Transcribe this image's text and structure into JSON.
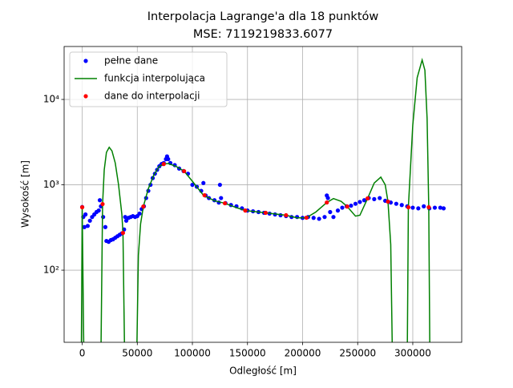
{
  "chart_data": {
    "type": "line",
    "title": "Interpolacja Lagrange'a dla 18 punktów",
    "subtitle": "MSE: 7119219833.6077",
    "x_label": "Odległość [m]",
    "y_label": "Wysokość [m]",
    "log_y": true,
    "grid": true,
    "legend": "upper left",
    "xlim": [
      -16400,
      344400
    ],
    "ylim": [
      14.3,
      41700
    ],
    "xticks": [
      0,
      50000,
      100000,
      150000,
      200000,
      250000,
      300000
    ],
    "yticks": [
      {
        "value": 100,
        "label": "10²"
      },
      {
        "value": 1000,
        "label": "10³"
      },
      {
        "value": 10000,
        "label": "10⁴"
      }
    ],
    "series": [
      {
        "name": "pełne dane",
        "color": "#0000ff",
        "style": "markers",
        "x": [
          0,
          1000,
          2000,
          3000,
          5000,
          7000,
          9000,
          11000,
          13000,
          15000,
          16000,
          17000,
          19000,
          21000,
          22000,
          24000,
          26000,
          28000,
          30000,
          32000,
          34000,
          36000,
          38000,
          39000,
          40000,
          42000,
          44000,
          46000,
          48000,
          50000,
          52000,
          54000,
          56000,
          58000,
          60000,
          62000,
          64000,
          66000,
          68000,
          70000,
          72000,
          74000,
          76000,
          77000,
          78000,
          80000,
          84000,
          88000,
          92000,
          96000,
          100000,
          104000,
          108000,
          110000,
          112000,
          115000,
          120000,
          124000,
          125000,
          126000,
          130000,
          135000,
          140000,
          145000,
          150000,
          155000,
          160000,
          165000,
          170000,
          175000,
          180000,
          185000,
          190000,
          195000,
          200000,
          205000,
          210000,
          215000,
          220000,
          222000,
          223000,
          225000,
          228000,
          232000,
          236000,
          240000,
          244000,
          248000,
          252000,
          256000,
          260000,
          265000,
          270000,
          275000,
          280000,
          285000,
          290000,
          295000,
          300000,
          305000,
          310000,
          315000,
          320000,
          325000,
          328000
        ],
        "values": [
          550,
          420,
          320,
          450,
          330,
          380,
          420,
          450,
          480,
          500,
          660,
          560,
          420,
          320,
          220,
          215,
          225,
          230,
          240,
          250,
          260,
          270,
          300,
          420,
          380,
          410,
          420,
          430,
          420,
          430,
          460,
          520,
          560,
          700,
          850,
          1000,
          1200,
          1350,
          1500,
          1650,
          1750,
          1800,
          2000,
          2150,
          2000,
          1800,
          1700,
          1550,
          1450,
          1350,
          1000,
          950,
          850,
          1050,
          750,
          700,
          660,
          620,
          1000,
          700,
          610,
          580,
          560,
          530,
          500,
          490,
          480,
          470,
          460,
          450,
          440,
          430,
          420,
          420,
          410,
          420,
          410,
          400,
          420,
          750,
          700,
          480,
          420,
          500,
          540,
          560,
          570,
          600,
          630,
          660,
          700,
          680,
          700,
          650,
          620,
          600,
          580,
          560,
          540,
          530,
          560,
          530,
          540,
          540,
          530
        ]
      },
      {
        "name": "funkcja interpolująca",
        "color": "#008000",
        "style": "line",
        "x": [
          -800,
          0,
          1500,
          null,
          17000,
          18500,
          20000,
          22000,
          24500,
          27000,
          30000,
          33000,
          36000,
          37000,
          38500,
          null,
          49500,
          51000,
          53000,
          55500,
          60000,
          65000,
          70000,
          74000,
          78000,
          85000,
          92500,
          100000,
          110000,
          120000,
          129500,
          140000,
          148000,
          166500,
          185000,
          195000,
          203500,
          212000,
          222000,
          228000,
          235000,
          240500,
          248000,
          252000,
          259000,
          265000,
          271000,
          275000,
          277500,
          280000,
          281500,
          null,
          295000,
          296000,
          300000,
          304000,
          308500,
          311000,
          313000,
          314500,
          315500
        ],
        "values": [
          10,
          546,
          10,
          null,
          10,
          595,
          1500,
          2400,
          2750,
          2500,
          1800,
          1000,
          450,
          273,
          10,
          null,
          10,
          150,
          350,
          557,
          900,
          1300,
          1650,
          1750,
          1780,
          1650,
          1444,
          1100,
          755,
          650,
          608,
          540,
          500,
          470,
          440,
          410,
          412,
          480,
          621,
          690,
          640,
          557,
          430,
          440,
          693,
          1050,
          1230,
          1000,
          636,
          200,
          10,
          null,
          10,
          546,
          5000,
          18000,
          29000,
          22000,
          6000,
          546,
          10
        ]
      },
      {
        "name": "dane do interpolacji",
        "color": "#ff0000",
        "style": "markers",
        "x": [
          0,
          18500,
          37000,
          55500,
          74000,
          92500,
          111000,
          129500,
          148000,
          166500,
          185000,
          203500,
          222000,
          240500,
          259000,
          277500,
          296000,
          314500
        ],
        "values": [
          546,
          595,
          273,
          557,
          1750,
          1444,
          755,
          608,
          500,
          470,
          440,
          412,
          621,
          557,
          693,
          636,
          546,
          546
        ]
      }
    ]
  }
}
